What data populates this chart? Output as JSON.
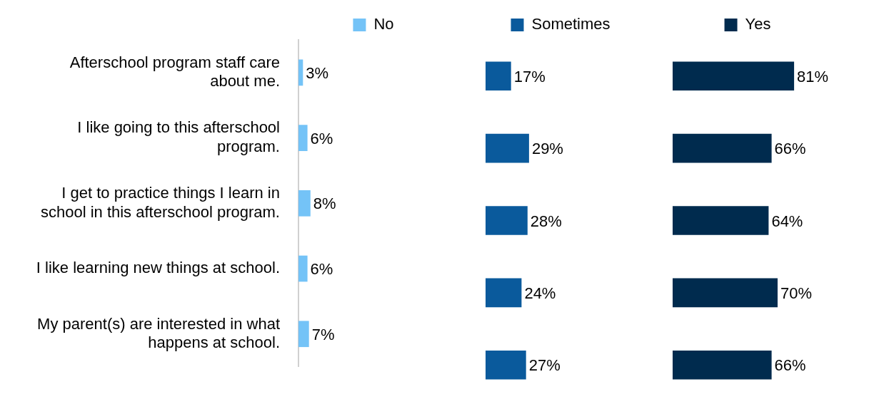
{
  "chart_data": [
    {
      "type": "bar",
      "orientation": "horizontal",
      "categories": [
        "Afterschool program staff care about me.",
        "I like going to this afterschool program.",
        "I get to practice things I learn in school in this afterschool program.",
        "I like learning new things at school.",
        "My parent(s) are interested in what happens at school."
      ],
      "series": [
        {
          "name": "No",
          "color": "#74c3f7",
          "values": [
            3,
            6,
            8,
            6,
            7
          ],
          "value_labels": [
            "3%",
            "6%",
            "8%",
            "6%",
            "7%"
          ]
        }
      ],
      "grid": false,
      "legend": "top",
      "tick_labels": "y"
    },
    {
      "type": "bar",
      "orientation": "horizontal",
      "categories": [
        null,
        null,
        null,
        null,
        null
      ],
      "series": [
        {
          "name": "Sometimes",
          "color": "#0a5a9c",
          "values": [
            17,
            29,
            28,
            24,
            27
          ],
          "value_labels": [
            "17%",
            "29%",
            "28%",
            "24%",
            "27%"
          ]
        }
      ],
      "grid": false,
      "legend": "top",
      "tick_labels": false
    },
    {
      "type": "bar",
      "orientation": "horizontal",
      "categories": [
        null,
        null,
        null,
        null,
        null
      ],
      "series": [
        {
          "name": "Yes",
          "color": "#002b4e",
          "values": [
            81,
            66,
            64,
            70,
            66
          ],
          "value_labels": [
            "81%",
            "66%",
            "64%",
            "70%",
            "66%"
          ]
        }
      ],
      "grid": false,
      "legend": "top",
      "tick_labels": false
    }
  ]
}
